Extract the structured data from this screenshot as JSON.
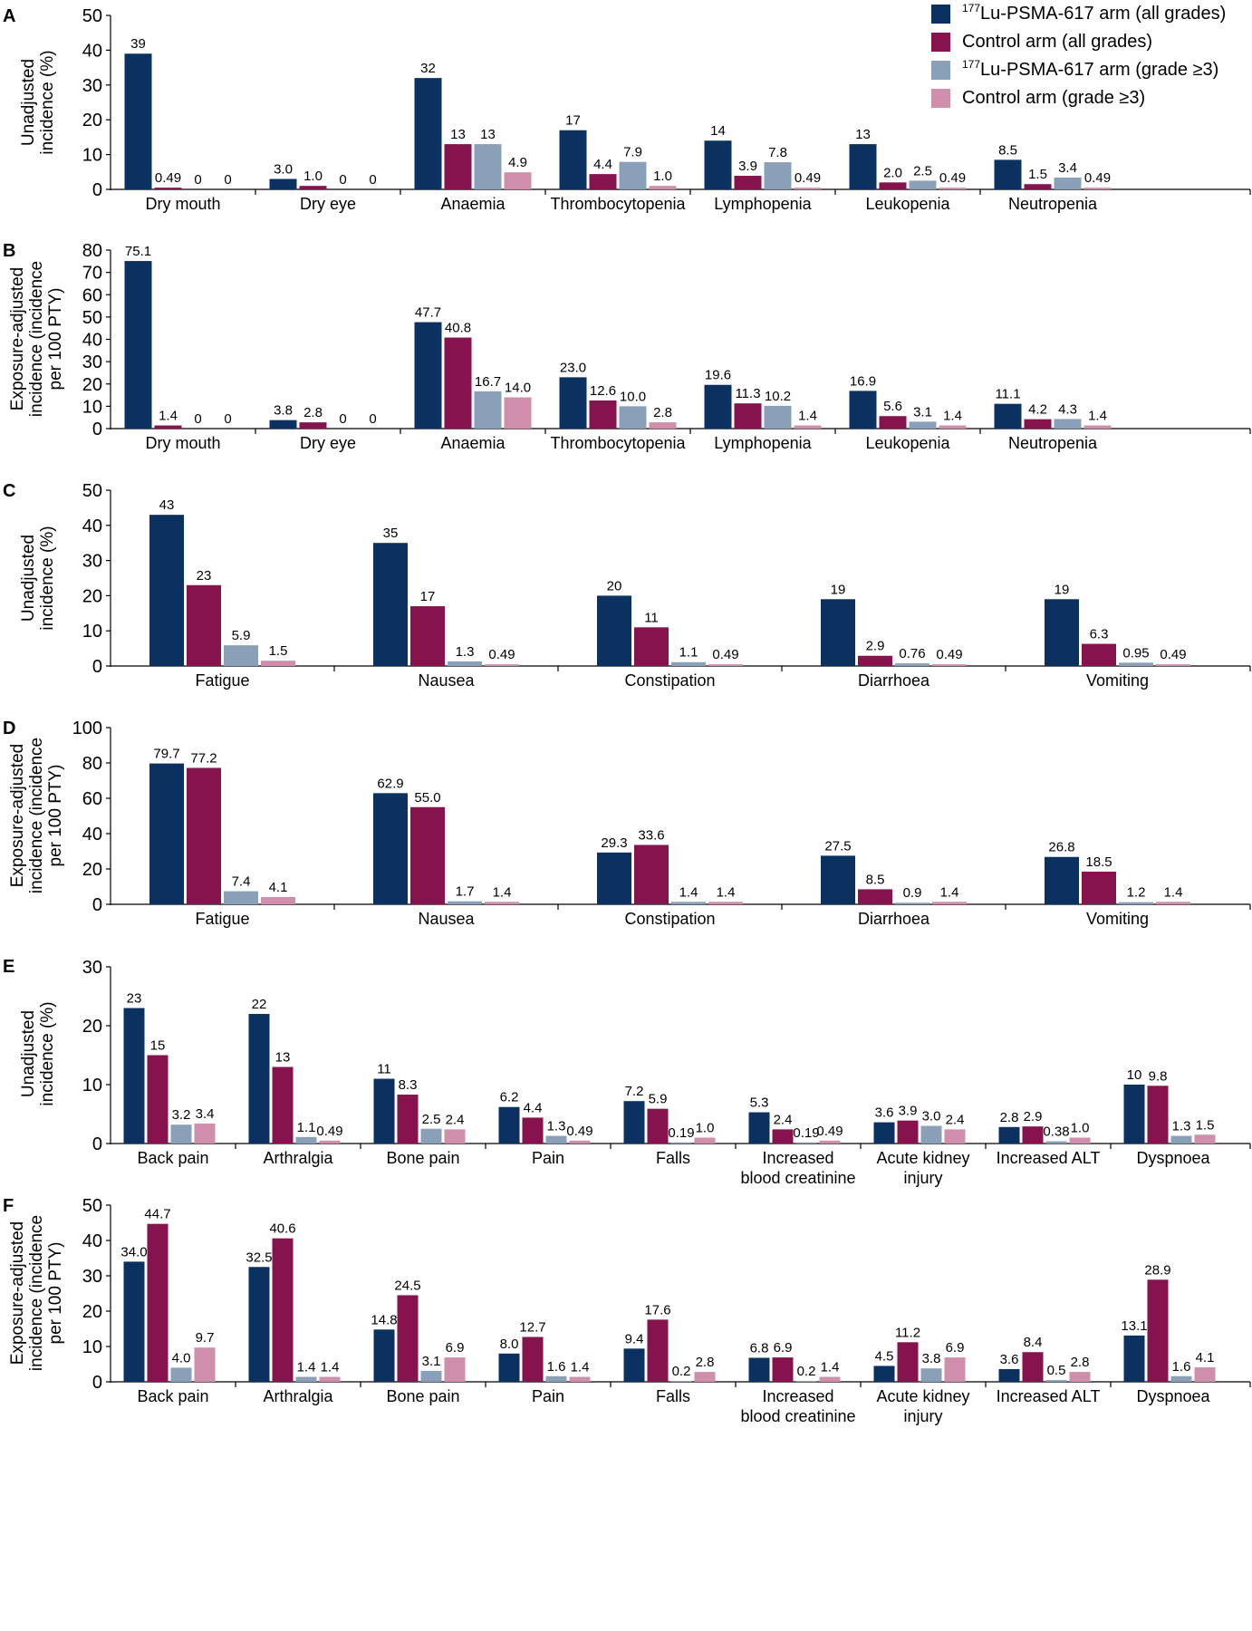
{
  "colors": {
    "lu_all": "#0b3160",
    "ctrl_all": "#86134d",
    "lu_g3": "#8aa0b8",
    "ctrl_g3": "#cf8fac"
  },
  "legend": {
    "items": [
      {
        "sup": "177",
        "label": "Lu-PSMA-617 arm (all grades)",
        "color_key": "lu_all"
      },
      {
        "sup": "",
        "label": "Control arm (all grades)",
        "color_key": "ctrl_all"
      },
      {
        "sup": "177",
        "label": "Lu-PSMA-617 arm (grade ≥3)",
        "color_key": "lu_g3"
      },
      {
        "sup": "",
        "label": "Control arm (grade ≥3)",
        "color_key": "ctrl_g3"
      }
    ]
  },
  "chart_data": [
    {
      "type": "bar",
      "panel": "A",
      "ylabel": [
        "Unadjusted",
        "incidence (%)"
      ],
      "ylim": [
        0,
        50
      ],
      "yticks": [
        0,
        10,
        20,
        30,
        40,
        50
      ],
      "categories": [
        [
          "Dry mouth"
        ],
        [
          "Dry eye"
        ],
        [
          "Anaemia"
        ],
        [
          "Thrombocytopenia"
        ],
        [
          "Lymphopenia"
        ],
        [
          "Leukopenia"
        ],
        [
          "Neutropenia"
        ]
      ],
      "series": [
        {
          "name": "177Lu-PSMA-617 arm (all grades)",
          "values": [
            39,
            3.0,
            32,
            17,
            14,
            13,
            8.5
          ],
          "labels": [
            "39",
            "3.0",
            "32",
            "17",
            "14",
            "13",
            "8.5"
          ]
        },
        {
          "name": "Control arm (all grades)",
          "values": [
            0.49,
            1.0,
            13,
            4.4,
            3.9,
            2.0,
            1.5
          ],
          "labels": [
            "0.49",
            "1.0",
            "13",
            "4.4",
            "3.9",
            "2.0",
            "1.5"
          ]
        },
        {
          "name": "177Lu-PSMA-617 arm (grade ≥3)",
          "values": [
            0,
            0,
            13,
            7.9,
            7.8,
            2.5,
            3.4
          ],
          "labels": [
            "0",
            "0",
            "13",
            "7.9",
            "7.8",
            "2.5",
            "3.4"
          ]
        },
        {
          "name": "Control arm (grade ≥3)",
          "values": [
            0,
            0,
            4.9,
            1.0,
            0.49,
            0.49,
            0.49
          ],
          "labels": [
            "0",
            "0",
            "4.9",
            "1.0",
            "0.49",
            "0.49",
            "0.49"
          ]
        }
      ]
    },
    {
      "type": "bar",
      "panel": "B",
      "ylabel": [
        "Exposure-adjusted",
        "incidence (incidence",
        "per 100 PTY)"
      ],
      "ylim": [
        0,
        80
      ],
      "yticks": [
        0,
        10,
        20,
        30,
        40,
        50,
        60,
        70,
        80
      ],
      "categories": [
        [
          "Dry mouth"
        ],
        [
          "Dry eye"
        ],
        [
          "Anaemia"
        ],
        [
          "Thrombocytopenia"
        ],
        [
          "Lymphopenia"
        ],
        [
          "Leukopenia"
        ],
        [
          "Neutropenia"
        ]
      ],
      "series": [
        {
          "name": "177Lu-PSMA-617 arm (all grades)",
          "values": [
            75.1,
            3.8,
            47.7,
            23.0,
            19.6,
            16.9,
            11.1
          ],
          "labels": [
            "75.1",
            "3.8",
            "47.7",
            "23.0",
            "19.6",
            "16.9",
            "11.1"
          ]
        },
        {
          "name": "Control arm (all grades)",
          "values": [
            1.4,
            2.8,
            40.8,
            12.6,
            11.3,
            5.6,
            4.2
          ],
          "labels": [
            "1.4",
            "2.8",
            "40.8",
            "12.6",
            "11.3",
            "5.6",
            "4.2"
          ]
        },
        {
          "name": "177Lu-PSMA-617 arm (grade ≥3)",
          "values": [
            0,
            0,
            16.7,
            10.0,
            10.2,
            3.1,
            4.3
          ],
          "labels": [
            "0",
            "0",
            "16.7",
            "10.0",
            "10.2",
            "3.1",
            "4.3"
          ]
        },
        {
          "name": "Control arm (grade ≥3)",
          "values": [
            0,
            0,
            14.0,
            2.8,
            1.4,
            1.4,
            1.4
          ],
          "labels": [
            "0",
            "0",
            "14.0",
            "2.8",
            "1.4",
            "1.4",
            "1.4"
          ]
        }
      ]
    },
    {
      "type": "bar",
      "panel": "C",
      "ylabel": [
        "Unadjusted",
        "incidence (%)"
      ],
      "ylim": [
        0,
        50
      ],
      "yticks": [
        0,
        10,
        20,
        30,
        40,
        50
      ],
      "categories": [
        [
          "Fatigue"
        ],
        [
          "Nausea"
        ],
        [
          "Constipation"
        ],
        [
          "Diarrhoea"
        ],
        [
          "Vomiting"
        ]
      ],
      "series": [
        {
          "name": "177Lu-PSMA-617 arm (all grades)",
          "values": [
            43,
            35,
            20,
            19,
            19
          ],
          "labels": [
            "43",
            "35",
            "20",
            "19",
            "19"
          ]
        },
        {
          "name": "Control arm (all grades)",
          "values": [
            23,
            17,
            11,
            2.9,
            6.3
          ],
          "labels": [
            "23",
            "17",
            "11",
            "2.9",
            "6.3"
          ]
        },
        {
          "name": "177Lu-PSMA-617 arm (grade ≥3)",
          "values": [
            5.9,
            1.3,
            1.1,
            0.76,
            0.95
          ],
          "labels": [
            "5.9",
            "1.3",
            "1.1",
            "0.76",
            "0.95"
          ]
        },
        {
          "name": "Control arm (grade ≥3)",
          "values": [
            1.5,
            0.49,
            0.49,
            0.49,
            0.49
          ],
          "labels": [
            "1.5",
            "0.49",
            "0.49",
            "0.49",
            "0.49"
          ]
        }
      ]
    },
    {
      "type": "bar",
      "panel": "D",
      "ylabel": [
        "Exposure-adjusted",
        "incidence (incidence",
        "per 100 PTY)"
      ],
      "ylim": [
        0,
        100
      ],
      "yticks": [
        0,
        20,
        40,
        60,
        80,
        100
      ],
      "categories": [
        [
          "Fatigue"
        ],
        [
          "Nausea"
        ],
        [
          "Constipation"
        ],
        [
          "Diarrhoea"
        ],
        [
          "Vomiting"
        ]
      ],
      "series": [
        {
          "name": "177Lu-PSMA-617 arm (all grades)",
          "values": [
            79.7,
            62.9,
            29.3,
            27.5,
            26.8
          ],
          "labels": [
            "79.7",
            "62.9",
            "29.3",
            "27.5",
            "26.8"
          ]
        },
        {
          "name": "Control arm (all grades)",
          "values": [
            77.2,
            55.0,
            33.6,
            8.5,
            18.5
          ],
          "labels": [
            "77.2",
            "55.0",
            "33.6",
            "8.5",
            "18.5"
          ]
        },
        {
          "name": "177Lu-PSMA-617 arm (grade ≥3)",
          "values": [
            7.4,
            1.7,
            1.4,
            0.9,
            1.2
          ],
          "labels": [
            "7.4",
            "1.7",
            "1.4",
            "0.9",
            "1.2"
          ]
        },
        {
          "name": "Control arm (grade ≥3)",
          "values": [
            4.1,
            1.4,
            1.4,
            1.4,
            1.4
          ],
          "labels": [
            "4.1",
            "1.4",
            "1.4",
            "1.4",
            "1.4"
          ]
        }
      ]
    },
    {
      "type": "bar",
      "panel": "E",
      "ylabel": [
        "Unadjusted",
        "incidence (%)"
      ],
      "ylim": [
        0,
        30
      ],
      "yticks": [
        0,
        10,
        20,
        30
      ],
      "categories": [
        [
          "Back pain"
        ],
        [
          "Arthralgia"
        ],
        [
          "Bone pain"
        ],
        [
          "Pain"
        ],
        [
          "Falls"
        ],
        [
          "Increased",
          "blood creatinine"
        ],
        [
          "Acute kidney",
          "injury"
        ],
        [
          "Increased ALT"
        ],
        [
          "Dyspnoea"
        ]
      ],
      "series": [
        {
          "name": "177Lu-PSMA-617 arm (all grades)",
          "values": [
            23,
            22,
            11,
            6.2,
            7.2,
            5.3,
            3.6,
            2.8,
            10
          ],
          "labels": [
            "23",
            "22",
            "11",
            "6.2",
            "7.2",
            "5.3",
            "3.6",
            "2.8",
            "10"
          ]
        },
        {
          "name": "Control arm (all grades)",
          "values": [
            15,
            13,
            8.3,
            4.4,
            5.9,
            2.4,
            3.9,
            2.9,
            9.8
          ],
          "labels": [
            "15",
            "13",
            "8.3",
            "4.4",
            "5.9",
            "2.4",
            "3.9",
            "2.9",
            "9.8"
          ]
        },
        {
          "name": "177Lu-PSMA-617 arm (grade ≥3)",
          "values": [
            3.2,
            1.1,
            2.5,
            1.3,
            0.19,
            0.19,
            3.0,
            0.38,
            1.3
          ],
          "labels": [
            "3.2",
            "1.1",
            "2.5",
            "1.3",
            "0.19",
            "0.19",
            "3.0",
            "0.38",
            "1.3"
          ]
        },
        {
          "name": "Control arm (grade ≥3)",
          "values": [
            3.4,
            0.49,
            2.4,
            0.49,
            1.0,
            0.49,
            2.4,
            1.0,
            1.5
          ],
          "labels": [
            "3.4",
            "0.49",
            "2.4",
            "0.49",
            "1.0",
            "0.49",
            "2.4",
            "1.0",
            "1.5"
          ]
        }
      ]
    },
    {
      "type": "bar",
      "panel": "F",
      "ylabel": [
        "Exposure-adjusted",
        "incidence (incidence",
        "per 100 PTY)"
      ],
      "ylim": [
        0,
        50
      ],
      "yticks": [
        0,
        10,
        20,
        30,
        40,
        50
      ],
      "categories": [
        [
          "Back pain"
        ],
        [
          "Arthralgia"
        ],
        [
          "Bone pain"
        ],
        [
          "Pain"
        ],
        [
          "Falls"
        ],
        [
          "Increased",
          "blood creatinine"
        ],
        [
          "Acute kidney",
          "injury"
        ],
        [
          "Increased ALT"
        ],
        [
          "Dyspnoea"
        ]
      ],
      "series": [
        {
          "name": "177Lu-PSMA-617 arm (all grades)",
          "values": [
            34.0,
            32.5,
            14.8,
            8.0,
            9.4,
            6.8,
            4.5,
            3.6,
            13.1
          ],
          "labels": [
            "34.0",
            "32.5",
            "14.8",
            "8.0",
            "9.4",
            "6.8",
            "4.5",
            "3.6",
            "13.1"
          ]
        },
        {
          "name": "Control arm (all grades)",
          "values": [
            44.7,
            40.6,
            24.5,
            12.7,
            17.6,
            6.9,
            11.2,
            8.4,
            28.9
          ],
          "labels": [
            "44.7",
            "40.6",
            "24.5",
            "12.7",
            "17.6",
            "6.9",
            "11.2",
            "8.4",
            "28.9"
          ]
        },
        {
          "name": "177Lu-PSMA-617 arm (grade ≥3)",
          "values": [
            4.0,
            1.4,
            3.1,
            1.6,
            0.2,
            0.2,
            3.8,
            0.5,
            1.6
          ],
          "labels": [
            "4.0",
            "1.4",
            "3.1",
            "1.6",
            "0.2",
            "0.2",
            "3.8",
            "0.5",
            "1.6"
          ]
        },
        {
          "name": "Control arm (grade ≥3)",
          "values": [
            9.7,
            1.4,
            6.9,
            1.4,
            2.8,
            1.4,
            6.9,
            2.8,
            4.1
          ],
          "labels": [
            "9.7",
            "1.4",
            "6.9",
            "1.4",
            "2.8",
            "1.4",
            "6.9",
            "2.8",
            "4.1"
          ]
        }
      ]
    }
  ]
}
